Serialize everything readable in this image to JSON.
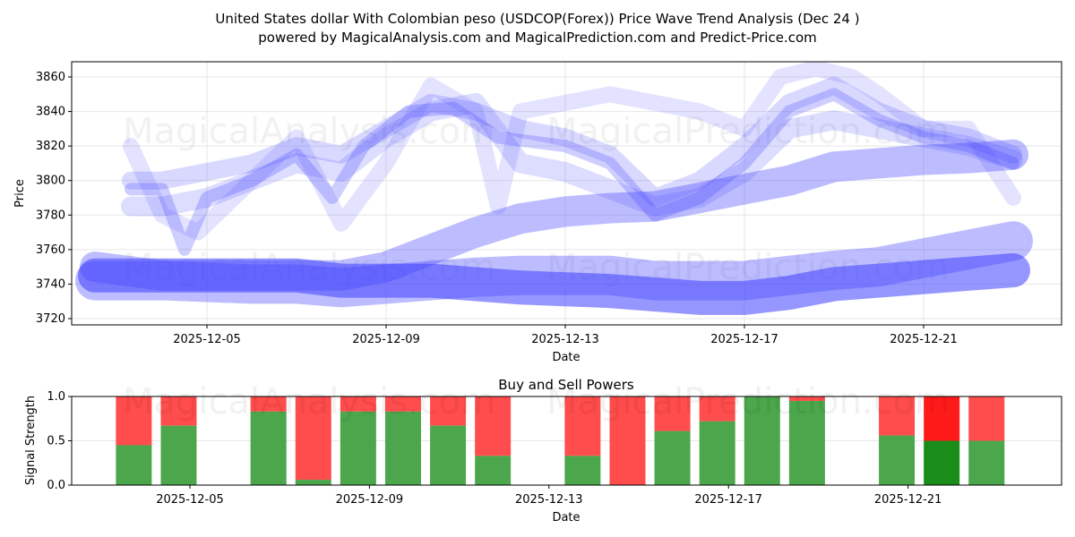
{
  "chart_data": [
    {
      "type": "line",
      "title": "United States dollar With Colombian peso (USDCOP(Forex)) Price Wave Trend Analysis (Dec 24 )",
      "subtitle": "powered by MagicalAnalysis.com and MagicalPrediction.com and Predict-Price.com",
      "xlabel": "Date",
      "ylabel": "Price",
      "ylim": [
        3716,
        3868
      ],
      "xlim_day": [
        2.0,
        24.1
      ],
      "yticks": [
        3720,
        3740,
        3760,
        3780,
        3800,
        3820,
        3840,
        3860
      ],
      "xticks": [
        {
          "day": 5,
          "label": "2025-12-05"
        },
        {
          "day": 9,
          "label": "2025-12-09"
        },
        {
          "day": 13,
          "label": "2025-12-13"
        },
        {
          "day": 17,
          "label": "2025-12-17"
        },
        {
          "day": 21,
          "label": "2025-12-21"
        }
      ],
      "grid": true,
      "watermarks": [
        "MagicalAnalysis.com",
        "MagicalPrediction.com"
      ],
      "color": "#4040ff",
      "series": [
        {
          "name": "wave-a",
          "width": 14,
          "opacity": 0.25,
          "x": [
            3.3,
            4,
            4.5,
            5,
            6,
            7,
            7.8,
            8.5,
            9.5,
            10.5,
            11.5,
            13,
            14,
            15,
            16,
            17,
            18,
            19,
            20,
            21,
            22,
            23
          ],
          "y": [
            3795,
            3795,
            3760,
            3790,
            3800,
            3815,
            3790,
            3820,
            3840,
            3842,
            3825,
            3820,
            3810,
            3780,
            3790,
            3810,
            3840,
            3850,
            3835,
            3825,
            3820,
            3810
          ]
        },
        {
          "name": "wave-b",
          "width": 20,
          "opacity": 0.2,
          "x": [
            3.3,
            4,
            5,
            6,
            7,
            8,
            9,
            10,
            11,
            12,
            13,
            14,
            15,
            16,
            17,
            18,
            19,
            20,
            21,
            22,
            23
          ],
          "y": [
            3800,
            3800,
            3805,
            3810,
            3820,
            3815,
            3830,
            3845,
            3840,
            3830,
            3825,
            3815,
            3790,
            3800,
            3820,
            3845,
            3855,
            3840,
            3830,
            3825,
            3815
          ]
        },
        {
          "name": "wave-c",
          "width": 18,
          "opacity": 0.15,
          "x": [
            3.3,
            4,
            4.8,
            6,
            7,
            8,
            9,
            10,
            11,
            11.5,
            12,
            13,
            14,
            15,
            16,
            17,
            17.8,
            18.6,
            19.4,
            20,
            21,
            22,
            23
          ],
          "y": [
            3820,
            3780,
            3770,
            3800,
            3825,
            3775,
            3810,
            3855,
            3840,
            3785,
            3840,
            3845,
            3850,
            3845,
            3840,
            3830,
            3860,
            3865,
            3860,
            3850,
            3830,
            3830,
            3790
          ]
        },
        {
          "name": "wave-d",
          "width": 22,
          "opacity": 0.18,
          "x": [
            3.3,
            4,
            5,
            6,
            7,
            8,
            9,
            10,
            11,
            12,
            13,
            14,
            15,
            16,
            17,
            18,
            19,
            20,
            21,
            22,
            23
          ],
          "y": [
            3785,
            3785,
            3790,
            3800,
            3810,
            3805,
            3825,
            3840,
            3845,
            3810,
            3805,
            3795,
            3785,
            3790,
            3805,
            3830,
            3835,
            3830,
            3825,
            3820,
            3812
          ]
        },
        {
          "name": "trend-upper",
          "width": 34,
          "opacity": 0.35,
          "x": [
            2.5,
            4,
            6,
            7,
            8,
            9,
            10,
            11,
            12,
            13,
            14,
            15,
            16,
            17,
            18,
            19,
            20,
            21,
            22,
            23
          ],
          "y": [
            3750,
            3745,
            3745,
            3745,
            3745,
            3750,
            3760,
            3770,
            3778,
            3782,
            3784,
            3785,
            3790,
            3795,
            3800,
            3808,
            3810,
            3812,
            3813,
            3815
          ]
        },
        {
          "name": "trend-mid",
          "width": 44,
          "opacity": 0.35,
          "x": [
            2.5,
            4,
            6,
            7,
            8,
            9,
            10,
            11,
            12,
            13,
            14,
            15,
            16,
            17,
            18,
            19,
            20,
            21,
            22,
            23
          ],
          "y": [
            3742,
            3742,
            3740,
            3740,
            3738,
            3740,
            3742,
            3744,
            3745,
            3745,
            3745,
            3742,
            3742,
            3742,
            3745,
            3748,
            3750,
            3755,
            3760,
            3765
          ]
        },
        {
          "name": "trend-lower",
          "width": 38,
          "opacity": 0.55,
          "x": [
            2.5,
            4,
            6,
            7,
            8,
            9,
            10,
            11,
            12,
            13,
            14,
            15,
            16,
            17,
            18,
            19,
            20,
            21,
            22,
            23
          ],
          "y": [
            3745,
            3745,
            3745,
            3745,
            3742,
            3742,
            3742,
            3740,
            3738,
            3737,
            3736,
            3734,
            3732,
            3732,
            3735,
            3740,
            3742,
            3744,
            3746,
            3748
          ]
        }
      ]
    },
    {
      "type": "bar",
      "title": "Buy and Sell Powers",
      "xlabel": "Date",
      "ylabel": "Signal Strength",
      "ylim": [
        0,
        1
      ],
      "yticks": [
        "0.0",
        "0.5",
        "1.0"
      ],
      "xticks": [
        {
          "day": 5,
          "label": "2025-12-05"
        },
        {
          "day": 9,
          "label": "2025-12-09"
        },
        {
          "day": 13,
          "label": "2025-12-13"
        },
        {
          "day": 17,
          "label": "2025-12-17"
        },
        {
          "day": 21,
          "label": "2025-12-21"
        }
      ],
      "buy_color": "#4ca64c",
      "sell_color": "#ff4c4c",
      "highlight_buy_color": "#1a8c1a",
      "highlight_sell_color": "#ff1a1a",
      "days": [
        3.75,
        4.75,
        6.75,
        7.75,
        8.75,
        9.75,
        10.75,
        11.75,
        13.75,
        14.75,
        15.75,
        16.75,
        17.75,
        18.75,
        20.75,
        21.75,
        22.75
      ],
      "buy": [
        0.45,
        0.67,
        0.83,
        0.06,
        0.83,
        0.83,
        0.67,
        0.33,
        0.33,
        0.0,
        0.61,
        0.72,
        1.0,
        0.95,
        0.56,
        0.5,
        0.5
      ],
      "highlight_index": 15
    }
  ]
}
